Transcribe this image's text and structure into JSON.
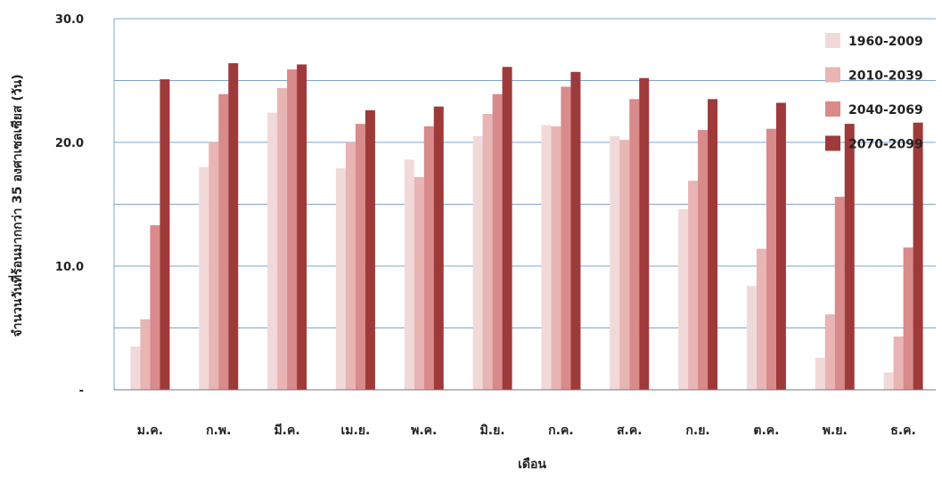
{
  "chart_data": {
    "type": "bar",
    "title": "",
    "xlabel": "เดือน",
    "ylabel": "จำนวนวันที่ร้อนมากกว่า 35 องศาเซลเซียส (วัน)",
    "ylim": [
      0,
      30
    ],
    "yticks": [
      {
        "value": 0,
        "label": "-"
      },
      {
        "value": 10,
        "label": "10.0"
      },
      {
        "value": 20,
        "label": "20.0"
      },
      {
        "value": 30,
        "label": "30.0"
      }
    ],
    "grid": true,
    "legend": "top-right",
    "categories": [
      "ม.ค.",
      "ก.พ.",
      "มี.ค.",
      "เม.ย.",
      "พ.ค.",
      "มิ.ย.",
      "ก.ค.",
      "ส.ค.",
      "ก.ย.",
      "ต.ค.",
      "พ.ย.",
      "ธ.ค."
    ],
    "series": [
      {
        "name": "1960-2009",
        "color": "#f2d9d9",
        "values": [
          3.5,
          18.0,
          22.4,
          17.9,
          18.6,
          20.5,
          21.4,
          20.5,
          14.6,
          8.4,
          2.6,
          1.4
        ]
      },
      {
        "name": "2010-2039",
        "color": "#e8b4b4",
        "values": [
          5.7,
          20.0,
          24.4,
          20.0,
          17.2,
          22.3,
          21.3,
          20.2,
          16.9,
          11.4,
          6.1,
          4.3
        ]
      },
      {
        "name": "2040-2069",
        "color": "#d98a8a",
        "values": [
          13.3,
          23.9,
          25.9,
          21.5,
          21.3,
          23.9,
          24.5,
          23.5,
          21.0,
          21.1,
          15.6,
          11.5
        ]
      },
      {
        "name": "2070-2099",
        "color": "#9e3a3a",
        "values": [
          25.1,
          26.4,
          26.3,
          22.6,
          22.9,
          26.1,
          25.7,
          25.2,
          23.5,
          23.2,
          21.5,
          21.6
        ]
      }
    ]
  }
}
